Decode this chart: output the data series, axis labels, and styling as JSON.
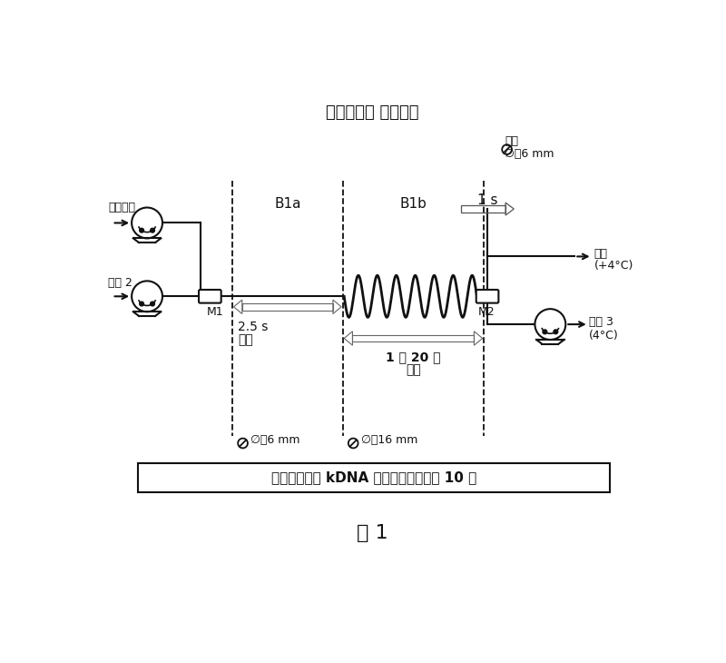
{
  "title": "细胞裂解： 连续模式",
  "fig_label": "图 1",
  "bottom_text": "连续模式中的 kDNA 比分批模式少超过 10 倍",
  "labels": {
    "cell_suspension": "细胞悬液",
    "solution2": "溶液 2",
    "solution3": "溶液 3\n(4°C)",
    "turbulence_top_line1": "湍流",
    "turbulence_top_line2": "∅，6 mm",
    "harvest_line1": "收获",
    "harvest_line2": "(+4°C)",
    "B1a": "B1a",
    "B1b": "B1b",
    "M1": "M1",
    "M2": "M2",
    "time1": "2.5 s",
    "turbulence1": "湍流",
    "diam1": "∅，6 mm",
    "time2": "1 分 20 秒",
    "turbulence2": "湍流",
    "diam2": "∅，16 mm",
    "time_top": "1 s"
  },
  "bg_color": "#ffffff",
  "line_color": "#111111"
}
